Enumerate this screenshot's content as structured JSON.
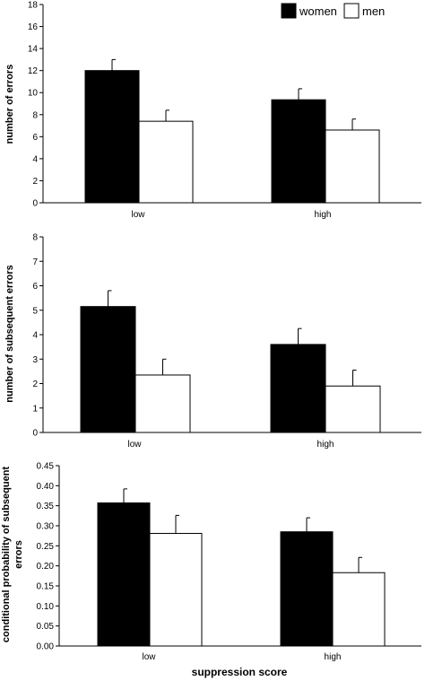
{
  "legend": {
    "series": [
      "women",
      "men"
    ],
    "placement": "top-right"
  },
  "colors": {
    "women": "#000000",
    "men": "#ffffff",
    "stroke": "#000000"
  },
  "chart_data": [
    {
      "type": "bar",
      "categories": [
        "low",
        "high"
      ],
      "series": [
        {
          "name": "women",
          "values": [
            12.0,
            9.35
          ],
          "errors": [
            1.0,
            1.0
          ]
        },
        {
          "name": "men",
          "values": [
            7.4,
            6.6
          ],
          "errors": [
            1.0,
            1.0
          ]
        }
      ],
      "xlabel": "",
      "ylabel": "number of errors",
      "ylim": [
        0,
        18
      ],
      "yticks": [
        "0",
        "2",
        "4",
        "6",
        "8",
        "10",
        "12",
        "14",
        "16",
        "18"
      ]
    },
    {
      "type": "bar",
      "categories": [
        "low",
        "high"
      ],
      "series": [
        {
          "name": "women",
          "values": [
            5.15,
            3.6
          ],
          "errors": [
            0.65,
            0.65
          ]
        },
        {
          "name": "men",
          "values": [
            2.35,
            1.9
          ],
          "errors": [
            0.65,
            0.65
          ]
        }
      ],
      "xlabel": "",
      "ylabel": "number of subsequent errors",
      "ylim": [
        0,
        8
      ],
      "yticks": [
        "0",
        "1",
        "2",
        "3",
        "4",
        "5",
        "6",
        "7",
        "8"
      ]
    },
    {
      "type": "bar",
      "categories": [
        "low",
        "high"
      ],
      "series": [
        {
          "name": "women",
          "values": [
            0.357,
            0.285
          ],
          "errors": [
            0.035,
            0.035
          ]
        },
        {
          "name": "men",
          "values": [
            0.281,
            0.183
          ],
          "errors": [
            0.045,
            0.038
          ]
        }
      ],
      "xlabel": "suppression score",
      "ylabel": "conditional probability of subsequent errors",
      "ylim": [
        0,
        0.45
      ],
      "yticks": [
        "0.00",
        "0.05",
        "0.10",
        "0.15",
        "0.20",
        "0.25",
        "0.30",
        "0.35",
        "0.40",
        "0.45"
      ]
    }
  ]
}
